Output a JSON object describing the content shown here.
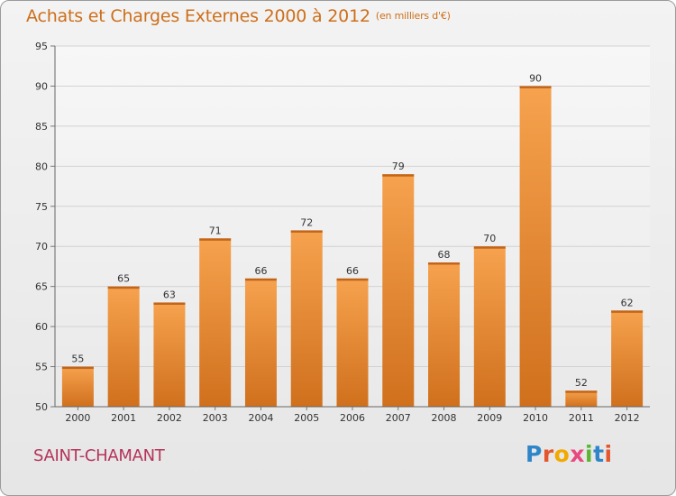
{
  "chart_data": {
    "type": "bar",
    "title": "Achats et Charges Externes 2000 à 2012",
    "unit_note": "(en milliers d'€)",
    "categories": [
      "2000",
      "2001",
      "2002",
      "2003",
      "2004",
      "2005",
      "2006",
      "2007",
      "2008",
      "2009",
      "2010",
      "2011",
      "2012"
    ],
    "values": [
      55,
      65,
      63,
      71,
      66,
      72,
      66,
      79,
      68,
      70,
      90,
      52,
      62
    ],
    "ylim": [
      50,
      95
    ],
    "yticks": [
      50,
      55,
      60,
      65,
      70,
      75,
      80,
      85,
      90,
      95
    ],
    "grid": true,
    "xlabel": "",
    "ylabel": "",
    "bar_color": "#f0913a",
    "bar_color_dark": "#d0701d"
  },
  "footer": {
    "place": "SAINT-CHAMANT",
    "logo_letters": [
      {
        "ch": "P",
        "color": "#2e86c8"
      },
      {
        "ch": "r",
        "color": "#e4572e"
      },
      {
        "ch": "o",
        "color": "#f2a900"
      },
      {
        "ch": "x",
        "color": "#e84a7f"
      },
      {
        "ch": "i",
        "color": "#5bb532"
      },
      {
        "ch": "t",
        "color": "#2e86c8"
      },
      {
        "ch": "i",
        "color": "#e4572e"
      }
    ]
  }
}
